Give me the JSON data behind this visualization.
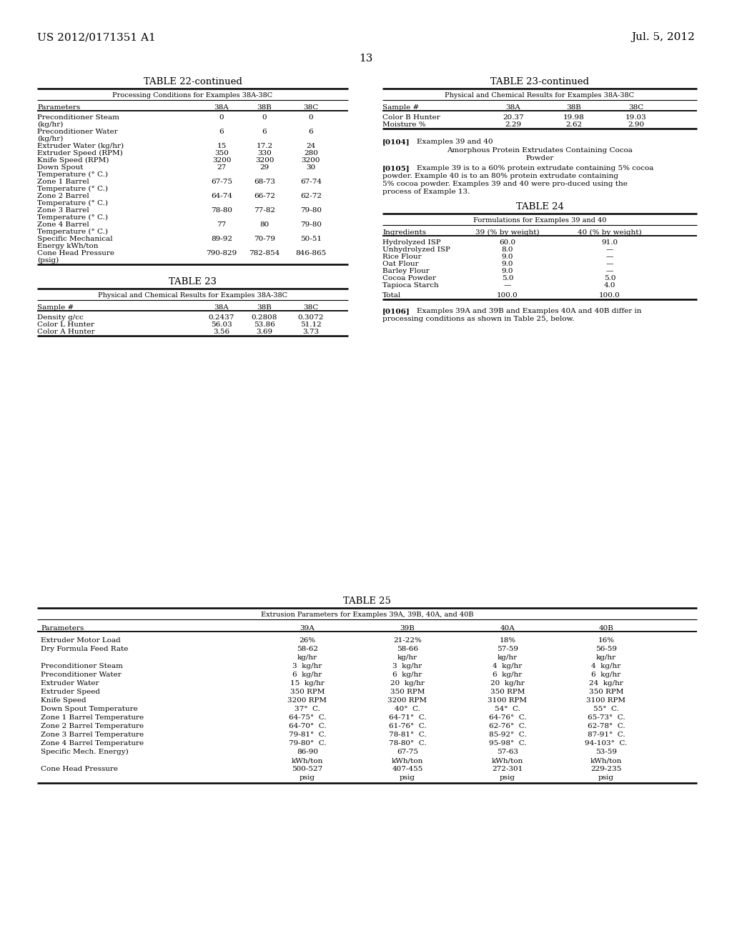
{
  "bg_color": "#ffffff",
  "header_left": "US 2012/0171351 A1",
  "header_right": "Jul. 5, 2012",
  "page_num": "13",
  "table22_title": "TABLE 22-continued",
  "table22_subtitle": "Processing Conditions for Examples 38A-38C",
  "table22_headers": [
    "Parameters",
    "38A",
    "38B",
    "38C"
  ],
  "table22_rows": [
    [
      "Preconditioner Steam",
      "(kg/hr)",
      "0",
      "0",
      "0"
    ],
    [
      "Preconditioner Water",
      "(kg/hr)",
      "6",
      "6",
      "6"
    ],
    [
      "Extruder Water (kg/hr)",
      "",
      "15",
      "17.2",
      "24"
    ],
    [
      "Extruder Speed (RPM)",
      "",
      "350",
      "330",
      "280"
    ],
    [
      "Knife Speed (RPM)",
      "",
      "3200",
      "3200",
      "3200"
    ],
    [
      "Down Spout",
      "Temperature (° C.)",
      "27",
      "29",
      "30"
    ],
    [
      "Zone 1 Barrel",
      "Temperature (° C.)",
      "67-75",
      "68-73",
      "67-74"
    ],
    [
      "Zone 2 Barrel",
      "Temperature (° C.)",
      "64-74",
      "66-72",
      "62-72"
    ],
    [
      "Zone 3 Barrel",
      "Temperature (° C.)",
      "78-80",
      "77-82",
      "79-80"
    ],
    [
      "Zone 4 Barrel",
      "Temperature (° C.)",
      "77",
      "80",
      "79-80"
    ],
    [
      "Specific Mechanical",
      "Energy kWh/ton",
      "89-92",
      "70-79",
      "50-51"
    ],
    [
      "Cone Head Pressure",
      "(psig)",
      "790-829",
      "782-854",
      "846-865"
    ]
  ],
  "table23_title": "TABLE 23",
  "table23_subtitle": "Physical and Chemical Results for Examples 38A-38C",
  "table23_headers": [
    "Sample #",
    "38A",
    "38B",
    "38C"
  ],
  "table23_rows": [
    [
      "Density g/cc",
      "0.2437",
      "0.2808",
      "0.3072"
    ],
    [
      "Color L Hunter",
      "56.03",
      "53.86",
      "51.12"
    ],
    [
      "Color A Hunter",
      "3.56",
      "3.69",
      "3.73"
    ]
  ],
  "table23cont_title": "TABLE 23-continued",
  "table23cont_subtitle": "Physical and Chemical Results for Examples 38A-38C",
  "table23cont_headers": [
    "Sample #",
    "38A",
    "38B",
    "38C"
  ],
  "table23cont_rows": [
    [
      "Color B Hunter",
      "20.37",
      "19.98",
      "19.03"
    ],
    [
      "Moisture %",
      "2.29",
      "2.62",
      "2.90"
    ]
  ],
  "para0104_tag": "[0104]",
  "para0104_heading1": "Examples 39 and 40",
  "para0104_heading2_line1": "Amorphous Protein Extrudates Containing Cocoa",
  "para0104_heading2_line2": "Powder",
  "para0105_tag": "[0105]",
  "para0105_text": "Example 39 is to a 60% protein extrudate containing 5% cocoa powder. Example 40 is to an 80% protein extrudate containing 5% cocoa powder. Examples 39 and 40 were pro-duced using the process of Example 13.",
  "table24_title": "TABLE 24",
  "table24_subtitle": "Formulations for Examples 39 and 40",
  "table24_headers": [
    "Ingredients",
    "39 (% by weight)",
    "40 (% by weight)"
  ],
  "table24_rows": [
    [
      "Hydrolyzed ISP",
      "60.0",
      "91.0"
    ],
    [
      "Unhydrolyzed ISP",
      "8.0",
      "—"
    ],
    [
      "Rice Flour",
      "9.0",
      "—"
    ],
    [
      "Oat Flour",
      "9.0",
      "—"
    ],
    [
      "Barley Flour",
      "9.0",
      "—"
    ],
    [
      "Cocoa Powder",
      "5.0",
      "5.0"
    ],
    [
      "Tapioca Starch",
      "—",
      "4.0"
    ],
    [
      "Total",
      "100.0",
      "100.0"
    ]
  ],
  "para0106_tag": "[0106]",
  "para0106_text": "Examples 39A and 39B and Examples 40A and 40B differ in processing conditions as shown in Table 25, below.",
  "table25_title": "TABLE 25",
  "table25_subtitle": "Extrusion Parameters for Examples 39A, 39B, 40A, and 40B",
  "table25_headers": [
    "Parameters",
    "39A",
    "39B",
    "40A",
    "40B"
  ],
  "table25_rows": [
    [
      "Extruder Motor Load",
      "26%",
      "21-22%",
      "18%",
      "16%",
      "single"
    ],
    [
      "Dry Formula Feed Rate",
      "58-62",
      "58-66",
      "57-59",
      "56-59",
      "single"
    ],
    [
      "__unit__",
      "kg/hr",
      "kg/hr",
      "kg/hr",
      "kg/hr",
      "unit"
    ],
    [
      "Preconditioner Steam",
      "3  kg/hr",
      "3  kg/hr",
      "4  kg/hr",
      "4  kg/hr",
      "single"
    ],
    [
      "Preconditioner Water",
      "6  kg/hr",
      "6  kg/hr",
      "6  kg/hr",
      "6  kg/hr",
      "single"
    ],
    [
      "Extruder Water",
      "15  kg/hr",
      "20  kg/hr",
      "20  kg/hr",
      "24  kg/hr",
      "single"
    ],
    [
      "Extruder Speed",
      "350 RPM",
      "350 RPM",
      "350 RPM",
      "350 RPM",
      "single"
    ],
    [
      "Knife Speed",
      "3200 RPM",
      "3200 RPM",
      "3100 RPM",
      "3100 RPM",
      "single"
    ],
    [
      "Down Spout Temperature",
      "37°  C.",
      "40°  C.",
      "54°  C.",
      "55°  C.",
      "single"
    ],
    [
      "Zone 1 Barrel Temperature",
      "64-75°  C.",
      "64-71°  C.",
      "64-76°  C.",
      "65-73°  C.",
      "single"
    ],
    [
      "Zone 2 Barrel Temperature",
      "64-70°  C.",
      "61-76°  C.",
      "62-76°  C.",
      "62-78°  C.",
      "single"
    ],
    [
      "Zone 3 Barrel Temperature",
      "79-81°  C.",
      "78-81°  C.",
      "85-92°  C.",
      "87-91°  C.",
      "single"
    ],
    [
      "Zone 4 Barrel Temperature",
      "79-80°  C.",
      "78-80°  C.",
      "95-98°  C.",
      "94-103°  C.",
      "single"
    ],
    [
      "Specific Mech. Energy)",
      "86-90",
      "67-75",
      "57-63",
      "53-59",
      "single"
    ],
    [
      "__unit__",
      "kWh/ton",
      "kWh/ton",
      "kWh/ton",
      "kWh/ton",
      "unit"
    ],
    [
      "Cone Head Pressure",
      "500-527",
      "407-455",
      "272-301",
      "229-235",
      "single"
    ],
    [
      "__unit__",
      "psig",
      "psig",
      "psig",
      "psig",
      "unit"
    ]
  ]
}
